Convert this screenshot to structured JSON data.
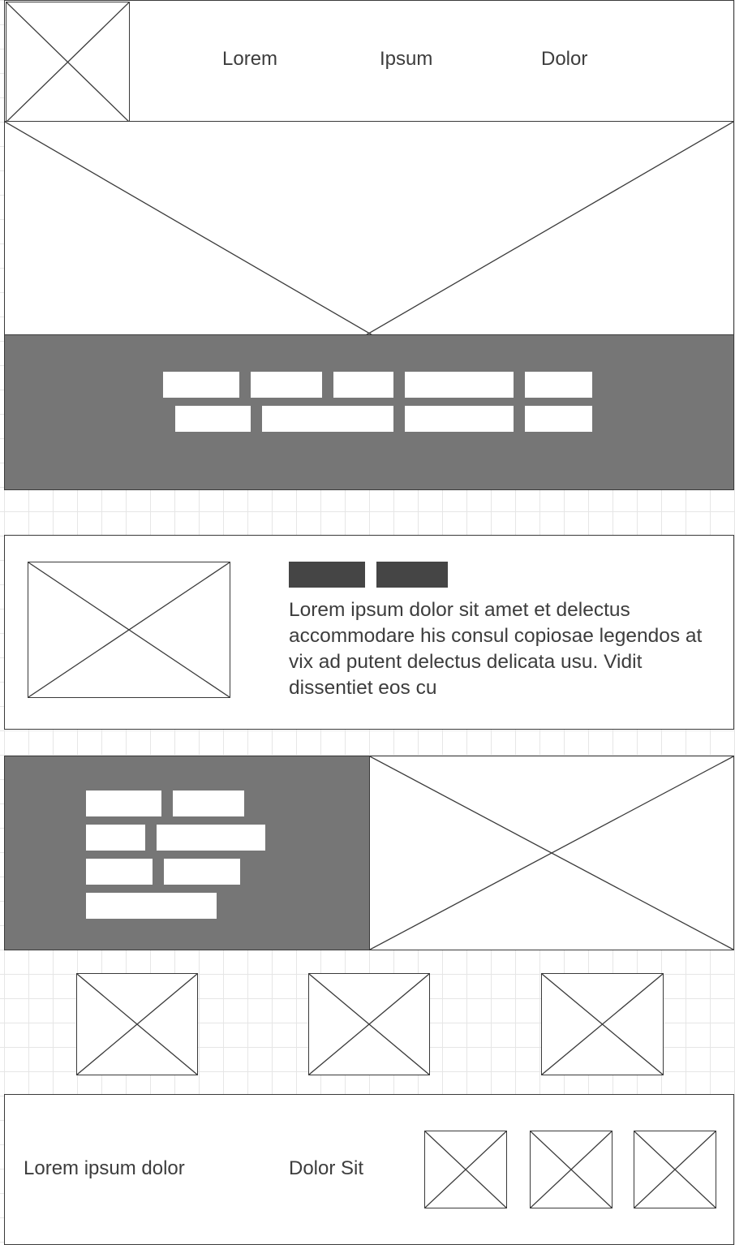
{
  "colors": {
    "line": "#3a3a3a",
    "dark_panel": "#767676",
    "tag_fill": "#454545",
    "grid": "#e6e6e6",
    "text": "#3d3d3d"
  },
  "header": {
    "logo": "image-placeholder-icon",
    "nav": [
      "Lorem",
      "Ipsum",
      "Dolor"
    ]
  },
  "hero": {
    "image": "image-placeholder-icon"
  },
  "tag_band": {
    "row1_count": 5,
    "row2_count": 4
  },
  "feature": {
    "image": "image-placeholder-icon",
    "tag_count": 2,
    "text": "Lorem ipsum dolor sit amet et delectus accommodare his consul copiosae legendos at vix ad putent delectus delicata usu. Vidit dissentiet eos cu"
  },
  "split": {
    "pill_rows": [
      2,
      2,
      2,
      1
    ],
    "image": "image-placeholder-icon"
  },
  "thumbnails": {
    "count": 3
  },
  "footer": {
    "text_left": "Lorem ipsum dolor",
    "text_mid": "Dolor Sit",
    "icon_count": 3
  }
}
